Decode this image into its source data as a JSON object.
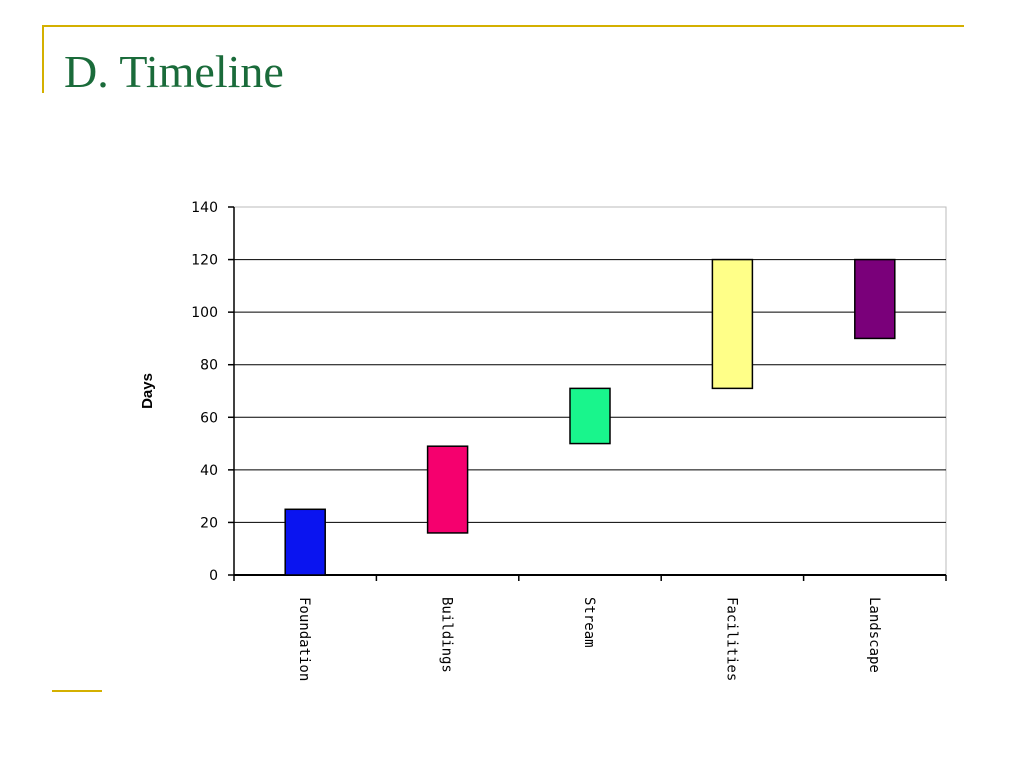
{
  "slide": {
    "title": "D. Timeline",
    "title_color": "#1a6b3a",
    "accent_color": "#d4b000"
  },
  "chart_data": {
    "type": "bar",
    "subtype": "floating-range",
    "title": "",
    "xlabel": "",
    "ylabel": "Days",
    "ylim": [
      0,
      140
    ],
    "yticks": [
      0,
      20,
      40,
      60,
      80,
      100,
      120,
      140
    ],
    "grid": true,
    "legend": "none",
    "categories": [
      "Foundation",
      "Buildings",
      "Stream",
      "Facilities",
      "Landscape"
    ],
    "ranges": [
      {
        "start": 0,
        "end": 25
      },
      {
        "start": 16,
        "end": 49
      },
      {
        "start": 50,
        "end": 71
      },
      {
        "start": 71,
        "end": 120
      },
      {
        "start": 90,
        "end": 120
      }
    ],
    "colors": [
      "#0a14f0",
      "#f5006e",
      "#19f58c",
      "#ffff88",
      "#7a007a"
    ]
  }
}
